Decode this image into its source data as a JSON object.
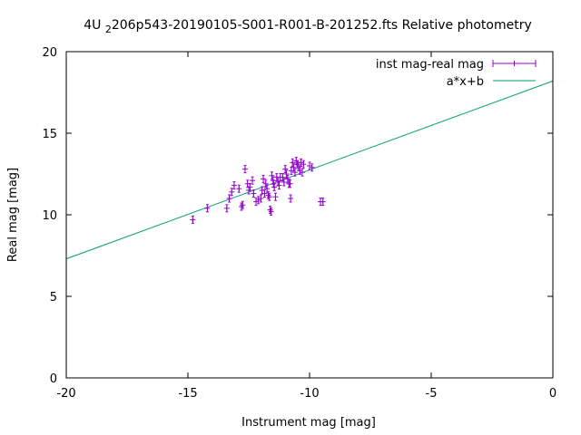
{
  "chart_data": {
    "type": "scatter",
    "title": "4U 2206p543-20190105-S001-R001-B-201252.fts Relative photometry",
    "title_parts": [
      "4U ",
      "2",
      "206p543-20190105-S001-R001-B-201252.fts Relative photometry"
    ],
    "xlabel": "Instrument mag [mag]",
    "ylabel": "Real mag [mag]",
    "xlim": [
      -20,
      0
    ],
    "ylim": [
      0,
      20
    ],
    "xticks": [
      -20,
      -15,
      -10,
      -5,
      0
    ],
    "yticks": [
      0,
      5,
      10,
      15,
      20
    ],
    "grid": false,
    "legend_position": "top-right",
    "series": [
      {
        "name": "inst mag-real mag",
        "type": "scatter_errorbars",
        "color": "#9400d3",
        "points": [
          [
            -14.8,
            9.7
          ],
          [
            -14.2,
            10.4
          ],
          [
            -13.4,
            10.4
          ],
          [
            -13.3,
            11.0
          ],
          [
            -13.2,
            11.4
          ],
          [
            -13.1,
            11.8
          ],
          [
            -12.9,
            11.6
          ],
          [
            -12.8,
            10.5
          ],
          [
            -12.75,
            10.6
          ],
          [
            -12.65,
            12.8
          ],
          [
            -12.55,
            11.9
          ],
          [
            -12.5,
            11.5
          ],
          [
            -12.45,
            11.7
          ],
          [
            -12.35,
            12.1
          ],
          [
            -12.3,
            11.3
          ],
          [
            -12.2,
            10.8
          ],
          [
            -12.1,
            10.9
          ],
          [
            -12.0,
            11.0
          ],
          [
            -11.95,
            11.5
          ],
          [
            -11.9,
            12.2
          ],
          [
            -11.85,
            11.3
          ],
          [
            -11.8,
            11.9
          ],
          [
            -11.75,
            11.6
          ],
          [
            -11.7,
            11.2
          ],
          [
            -11.65,
            11.1
          ],
          [
            -11.62,
            10.3
          ],
          [
            -11.58,
            10.2
          ],
          [
            -11.55,
            12.4
          ],
          [
            -11.5,
            12.1
          ],
          [
            -11.48,
            11.9
          ],
          [
            -11.45,
            11.7
          ],
          [
            -11.4,
            11.1
          ],
          [
            -11.35,
            12.3
          ],
          [
            -11.3,
            12.0
          ],
          [
            -11.25,
            11.8
          ],
          [
            -11.2,
            12.3
          ],
          [
            -11.1,
            12.3
          ],
          [
            -11.05,
            12.0
          ],
          [
            -11.0,
            12.8
          ],
          [
            -10.95,
            12.5
          ],
          [
            -10.9,
            12.2
          ],
          [
            -10.85,
            11.9
          ],
          [
            -10.8,
            11.9
          ],
          [
            -10.78,
            11.0
          ],
          [
            -10.75,
            12.7
          ],
          [
            -10.7,
            13.2
          ],
          [
            -10.65,
            12.9
          ],
          [
            -10.6,
            12.6
          ],
          [
            -10.55,
            13.3
          ],
          [
            -10.5,
            13.1
          ],
          [
            -10.45,
            13.0
          ],
          [
            -10.4,
            12.7
          ],
          [
            -10.35,
            13.2
          ],
          [
            -10.3,
            12.6
          ],
          [
            -10.25,
            13.1
          ],
          [
            -10.0,
            13.0
          ],
          [
            -9.9,
            12.9
          ],
          [
            -9.55,
            10.8
          ],
          [
            -9.45,
            10.8
          ]
        ]
      },
      {
        "name": "a*x+b",
        "type": "line",
        "color": "#009e73",
        "slope": 0.545,
        "intercept": 18.2
      }
    ]
  }
}
